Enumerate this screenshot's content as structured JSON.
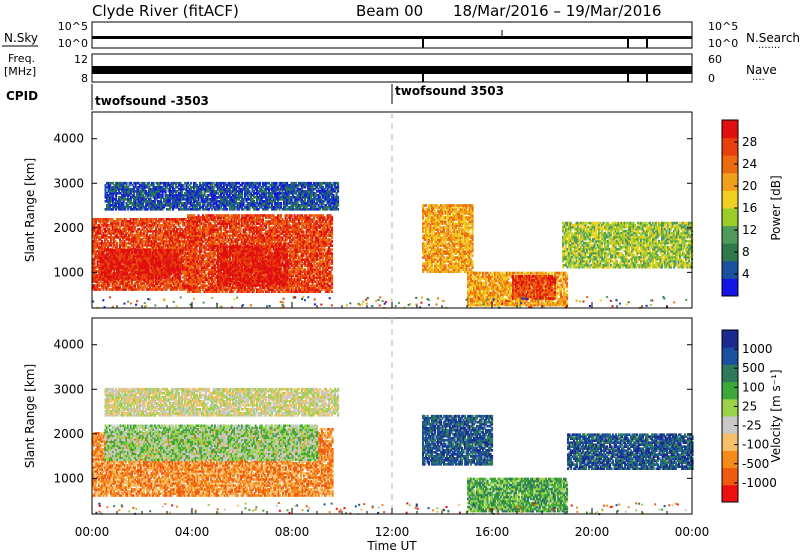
{
  "header": {
    "title": "Clyde River (fitACF)",
    "beam": "Beam 00",
    "date_range": "18/Mar/2016 – 19/Mar/2016"
  },
  "strip_labels": {
    "nsky": "N.Sky",
    "freq_line1": "Freq.",
    "freq_line2": "[MHz]",
    "cpid": "CPID",
    "nsearch": "N.Search",
    "nsearch_dots": "·······",
    "nave": "Nave",
    "nave_dots": "····"
  },
  "cpid_labels": [
    "twofsound -3503",
    "twofsound 3503"
  ],
  "colors": {
    "power_scale": [
      "#1414e6",
      "#1a50a0",
      "#2f7a4a",
      "#4f9a5a",
      "#9acc2a",
      "#f0d020",
      "#f2a01a",
      "#ec6a10",
      "#e8400c",
      "#e01010"
    ],
    "velocity_scale": [
      "#ee1010",
      "#f05a10",
      "#f58a18",
      "#f6c068",
      "#c8c8c8",
      "#9ad24a",
      "#3ca83a",
      "#2f7a5a",
      "#1a50a0",
      "#1a2a90"
    ]
  },
  "chart_data": [
    {
      "type": "line",
      "title": "N.Sky / N.Search",
      "yticks_left": [
        "10^5",
        "10^0"
      ],
      "yticks_right": [
        "10^5",
        "10^0"
      ]
    },
    {
      "type": "line",
      "title": "Freq. / Nave",
      "yticks_left": [
        "12",
        "8"
      ],
      "yticks_right": [
        "60",
        "0"
      ]
    },
    {
      "type": "heatmap",
      "ylabel": "Slant Range [km]",
      "yticks": [
        1000,
        2000,
        3000,
        4000
      ],
      "ylim": [
        200,
        4600
      ],
      "xlim_hours": [
        0,
        24
      ],
      "colorbar": {
        "label": "Power [dB]",
        "ticks": [
          "4",
          "8",
          "12",
          "16",
          "20",
          "24",
          "28"
        ]
      }
    },
    {
      "type": "heatmap",
      "ylabel": "Slant Range [km]",
      "yticks": [
        1000,
        2000,
        3000,
        4000
      ],
      "ylim": [
        200,
        4600
      ],
      "xlim_hours": [
        0,
        24
      ],
      "xticks": [
        "00:00",
        "04:00",
        "08:00",
        "12:00",
        "16:00",
        "20:00",
        "00:00"
      ],
      "xlabel": "Time UT",
      "colorbar": {
        "label": "Velocity [m s⁻¹]",
        "ticks": [
          "1000",
          "500",
          "100",
          "25",
          "-25",
          "-100",
          "-500",
          "-1000"
        ]
      }
    }
  ],
  "echo_regions": {
    "power_panel": [
      {
        "t0": 0.0,
        "t1": 4.2,
        "r0": 600,
        "r1": 2200,
        "level": 8
      },
      {
        "t0": 3.8,
        "t1": 9.6,
        "r0": 550,
        "r1": 2300,
        "level": 8
      },
      {
        "t0": 0.3,
        "t1": 3.5,
        "r0": 850,
        "r1": 1500,
        "level": 9
      },
      {
        "t0": 5.0,
        "t1": 7.8,
        "r0": 700,
        "r1": 1600,
        "level": 9
      },
      {
        "t0": 0.5,
        "t1": 9.8,
        "r0": 2400,
        "r1": 3000,
        "level": 1
      },
      {
        "t0": 13.2,
        "t1": 15.2,
        "r0": 1000,
        "r1": 2500,
        "level": 6
      },
      {
        "t0": 15.0,
        "t1": 19.0,
        "r0": 250,
        "r1": 1000,
        "level": 6
      },
      {
        "t0": 16.8,
        "t1": 18.5,
        "r0": 400,
        "r1": 900,
        "level": 8
      },
      {
        "t0": 18.8,
        "t1": 24.0,
        "r0": 1100,
        "r1": 2100,
        "level": 4
      }
    ],
    "velocity_panel": [
      {
        "t0": 0.0,
        "t1": 4.0,
        "r0": 600,
        "r1": 2000,
        "level": 2
      },
      {
        "t0": 4.0,
        "t1": 9.6,
        "r0": 600,
        "r1": 2100,
        "level": 2
      },
      {
        "t0": 0.5,
        "t1": 9.0,
        "r0": 1400,
        "r1": 2200,
        "level": 5
      },
      {
        "t0": 0.5,
        "t1": 9.8,
        "r0": 2400,
        "r1": 3000,
        "level": 4
      },
      {
        "t0": 13.2,
        "t1": 16.0,
        "r0": 1300,
        "r1": 2400,
        "level": 8
      },
      {
        "t0": 15.0,
        "t1": 19.0,
        "r0": 250,
        "r1": 1000,
        "level": 6
      },
      {
        "t0": 19.0,
        "t1": 24.0,
        "r0": 1200,
        "r1": 2000,
        "level": 8
      }
    ]
  }
}
